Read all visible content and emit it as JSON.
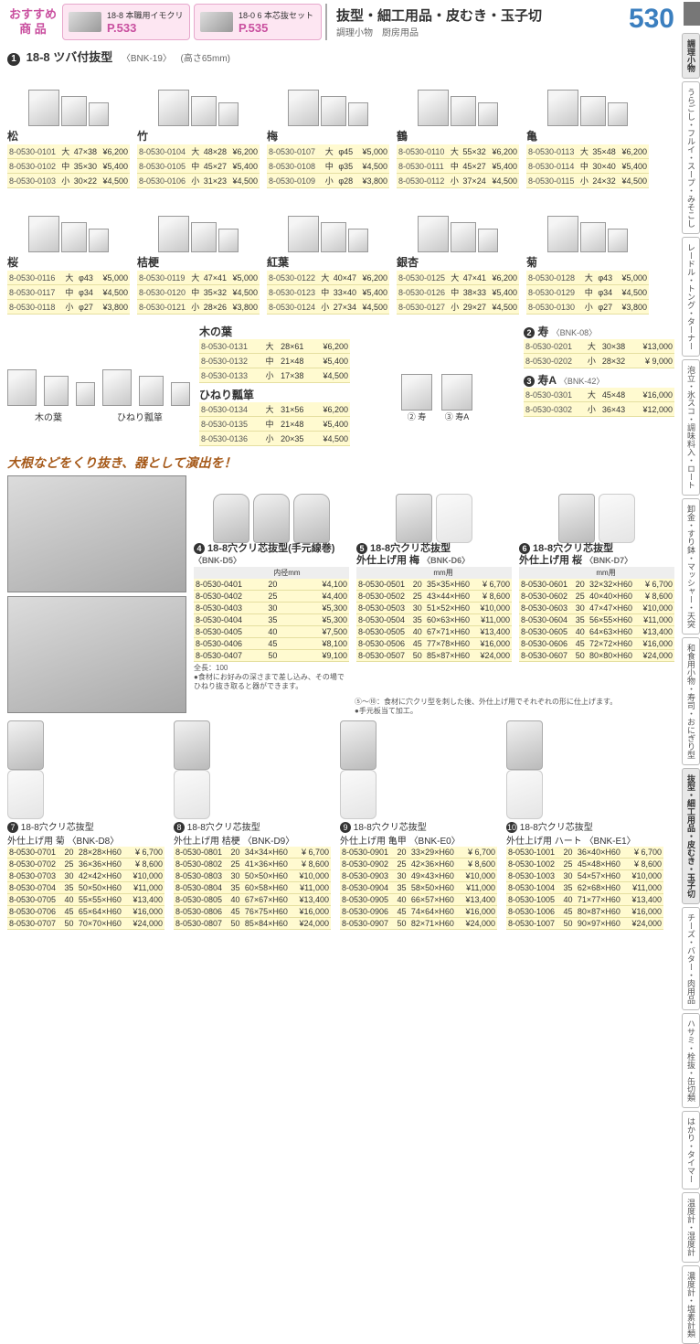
{
  "header": {
    "osusume": "おすすめ\n商 品",
    "promo1": {
      "label": "18-8 本職用イモクリ",
      "page": "P.533"
    },
    "promo2": {
      "label": "18-0 6 本芯抜セット",
      "page": "P.535"
    },
    "cat_main": "抜型・細工用品・皮むき・玉子切",
    "cat_sub": "調理小物　厨房用品",
    "pagenum": "530"
  },
  "side": [
    "調理小物",
    "うらごし・フルイ・スープ・みそこし",
    "レードル・トング・ターナー",
    "泡立・氷スコ・調味料入・ロート",
    "卸金・すり鉢・マッシャー・天突",
    "和食用小物・寿司・おにぎり型",
    "抜型・細工用品・皮むき・玉子切",
    "チーズ・バター・肉用品",
    "ハサミ・栓抜・缶切類",
    "はかり・タイマー",
    "温度計・湿度計",
    "濃度計・塩素計類"
  ],
  "title1": {
    "num": "1",
    "label": "18-8 ツバ付抜型",
    "code": "〈BNK-19〉",
    "note": "(高さ65mm)"
  },
  "row1": [
    {
      "name": "松",
      "rows": [
        [
          "8-0530-0101",
          "大",
          "47×38",
          "¥6,200"
        ],
        [
          "8-0530-0102",
          "中",
          "35×30",
          "¥5,400"
        ],
        [
          "8-0530-0103",
          "小",
          "30×22",
          "¥4,500"
        ]
      ]
    },
    {
      "name": "竹",
      "rows": [
        [
          "8-0530-0104",
          "大",
          "48×28",
          "¥6,200"
        ],
        [
          "8-0530-0105",
          "中",
          "45×27",
          "¥5,400"
        ],
        [
          "8-0530-0106",
          "小",
          "31×23",
          "¥4,500"
        ]
      ]
    },
    {
      "name": "梅",
      "rows": [
        [
          "8-0530-0107",
          "大",
          "φ45",
          "¥5,000"
        ],
        [
          "8-0530-0108",
          "中",
          "φ35",
          "¥4,500"
        ],
        [
          "8-0530-0109",
          "小",
          "φ28",
          "¥3,800"
        ]
      ]
    },
    {
      "name": "鶴",
      "rows": [
        [
          "8-0530-0110",
          "大",
          "55×32",
          "¥6,200"
        ],
        [
          "8-0530-0111",
          "中",
          "45×27",
          "¥5,400"
        ],
        [
          "8-0530-0112",
          "小",
          "37×24",
          "¥4,500"
        ]
      ]
    },
    {
      "name": "亀",
      "rows": [
        [
          "8-0530-0113",
          "大",
          "35×48",
          "¥6,200"
        ],
        [
          "8-0530-0114",
          "中",
          "30×40",
          "¥5,400"
        ],
        [
          "8-0530-0115",
          "小",
          "24×32",
          "¥4,500"
        ]
      ]
    }
  ],
  "row2": [
    {
      "name": "桜",
      "rows": [
        [
          "8-0530-0116",
          "大",
          "φ43",
          "¥5,000"
        ],
        [
          "8-0530-0117",
          "中",
          "φ34",
          "¥4,500"
        ],
        [
          "8-0530-0118",
          "小",
          "φ27",
          "¥3,800"
        ]
      ]
    },
    {
      "name": "桔梗",
      "rows": [
        [
          "8-0530-0119",
          "大",
          "47×41",
          "¥5,000"
        ],
        [
          "8-0530-0120",
          "中",
          "35×32",
          "¥4,500"
        ],
        [
          "8-0530-0121",
          "小",
          "28×26",
          "¥3,800"
        ]
      ]
    },
    {
      "name": "紅葉",
      "rows": [
        [
          "8-0530-0122",
          "大",
          "40×47",
          "¥6,200"
        ],
        [
          "8-0530-0123",
          "中",
          "33×40",
          "¥5,400"
        ],
        [
          "8-0530-0124",
          "小",
          "27×34",
          "¥4,500"
        ]
      ]
    },
    {
      "name": "銀杏",
      "rows": [
        [
          "8-0530-0125",
          "大",
          "47×41",
          "¥6,200"
        ],
        [
          "8-0530-0126",
          "中",
          "38×33",
          "¥5,400"
        ],
        [
          "8-0530-0127",
          "小",
          "29×27",
          "¥4,500"
        ]
      ]
    },
    {
      "name": "菊",
      "rows": [
        [
          "8-0530-0128",
          "大",
          "φ43",
          "¥5,000"
        ],
        [
          "8-0530-0129",
          "中",
          "φ34",
          "¥4,500"
        ],
        [
          "8-0530-0130",
          "小",
          "φ27",
          "¥3,800"
        ]
      ]
    }
  ],
  "leafL": {
    "img_labels": [
      "木の葉",
      "ひねり瓢箪"
    ],
    "konoha": {
      "name": "木の葉",
      "rows": [
        [
          "8-0530-0131",
          "大",
          "28×61",
          "¥6,200"
        ],
        [
          "8-0530-0132",
          "中",
          "21×48",
          "¥5,400"
        ],
        [
          "8-0530-0133",
          "小",
          "17×38",
          "¥4,500"
        ]
      ]
    },
    "hineri": {
      "name": "ひねり瓢箪",
      "rows": [
        [
          "8-0530-0134",
          "大",
          "31×56",
          "¥6,200"
        ],
        [
          "8-0530-0135",
          "中",
          "21×48",
          "¥5,400"
        ],
        [
          "8-0530-0136",
          "小",
          "20×35",
          "¥4,500"
        ]
      ]
    }
  },
  "kotobuki": [
    {
      "num": "2",
      "name": "寿",
      "code": "〈BNK-08〉",
      "rows": [
        [
          "8-0530-0201",
          "大",
          "30×38",
          "¥13,000"
        ],
        [
          "8-0530-0202",
          "小",
          "28×32",
          "¥  9,000"
        ]
      ]
    },
    {
      "num": "3",
      "name": "寿A",
      "code": "〈BNK-42〉",
      "rows": [
        [
          "8-0530-0301",
          "大",
          "45×48",
          "¥16,000"
        ],
        [
          "8-0530-0302",
          "小",
          "36×43",
          "¥12,000"
        ]
      ]
    }
  ],
  "callout": "大根などをくり抜き、器として演出を！",
  "tube": {
    "num": "4",
    "name": "18-8穴クリ芯抜型(手元線巻)",
    "code": "〈BNK-D5〉",
    "hdr": "内径mm",
    "rows": [
      [
        "8-0530-0401",
        "20",
        "¥4,100"
      ],
      [
        "8-0530-0402",
        "25",
        "¥4,400"
      ],
      [
        "8-0530-0403",
        "30",
        "¥5,300"
      ],
      [
        "8-0530-0404",
        "35",
        "¥5,300"
      ],
      [
        "8-0530-0405",
        "40",
        "¥7,500"
      ],
      [
        "8-0530-0406",
        "45",
        "¥8,100"
      ],
      [
        "8-0530-0407",
        "50",
        "¥9,100"
      ]
    ],
    "note1": "全長：100",
    "note2": "●食材にお好みの深さまで差し込み、その場でひねり抜き取ると器ができます。"
  },
  "outer": [
    {
      "num": "5",
      "name": "18-8穴クリ芯抜型\n外仕上げ用 梅",
      "code": "〈BNK-D6〉",
      "hdr": "mm用",
      "rows": [
        [
          "8-0530-0501",
          "20",
          "35×35×H60",
          "¥  6,700"
        ],
        [
          "8-0530-0502",
          "25",
          "43×44×H60",
          "¥  8,600"
        ],
        [
          "8-0530-0503",
          "30",
          "51×52×H60",
          "¥10,000"
        ],
        [
          "8-0530-0504",
          "35",
          "60×63×H60",
          "¥11,000"
        ],
        [
          "8-0530-0505",
          "40",
          "67×71×H60",
          "¥13,400"
        ],
        [
          "8-0530-0506",
          "45",
          "77×78×H60",
          "¥16,000"
        ],
        [
          "8-0530-0507",
          "50",
          "85×87×H60",
          "¥24,000"
        ]
      ]
    },
    {
      "num": "6",
      "name": "18-8穴クリ芯抜型\n外仕上げ用 桜",
      "code": "〈BNK-D7〉",
      "hdr": "mm用",
      "rows": [
        [
          "8-0530-0601",
          "20",
          "32×32×H60",
          "¥  6,700"
        ],
        [
          "8-0530-0602",
          "25",
          "40×40×H60",
          "¥  8,600"
        ],
        [
          "8-0530-0603",
          "30",
          "47×47×H60",
          "¥10,000"
        ],
        [
          "8-0530-0604",
          "35",
          "56×55×H60",
          "¥11,000"
        ],
        [
          "8-0530-0605",
          "40",
          "64×63×H60",
          "¥13,400"
        ],
        [
          "8-0530-0606",
          "45",
          "72×72×H60",
          "¥16,000"
        ],
        [
          "8-0530-0607",
          "50",
          "80×80×H60",
          "¥24,000"
        ]
      ]
    }
  ],
  "outer_note": "⑤～⑩：食材に穴クリ型を刺した後、外仕上げ用でそれぞれの形に仕上げます。\n●手元板当て加工。",
  "bottom": [
    {
      "num": "7",
      "name": "18-8穴クリ芯抜型\n外仕上げ用 菊",
      "code": "〈BNK-D8〉",
      "rows": [
        [
          "8-0530-0701",
          "20",
          "28×28×H60",
          "¥  6,700"
        ],
        [
          "8-0530-0702",
          "25",
          "36×36×H60",
          "¥  8,600"
        ],
        [
          "8-0530-0703",
          "30",
          "42×42×H60",
          "¥10,000"
        ],
        [
          "8-0530-0704",
          "35",
          "50×50×H60",
          "¥11,000"
        ],
        [
          "8-0530-0705",
          "40",
          "55×55×H60",
          "¥13,400"
        ],
        [
          "8-0530-0706",
          "45",
          "65×64×H60",
          "¥16,000"
        ],
        [
          "8-0530-0707",
          "50",
          "70×70×H60",
          "¥24,000"
        ]
      ]
    },
    {
      "num": "8",
      "name": "18-8穴クリ芯抜型\n外仕上げ用 桔梗",
      "code": "〈BNK-D9〉",
      "rows": [
        [
          "8-0530-0801",
          "20",
          "34×34×H60",
          "¥  6,700"
        ],
        [
          "8-0530-0802",
          "25",
          "41×36×H60",
          "¥  8,600"
        ],
        [
          "8-0530-0803",
          "30",
          "50×50×H60",
          "¥10,000"
        ],
        [
          "8-0530-0804",
          "35",
          "60×58×H60",
          "¥11,000"
        ],
        [
          "8-0530-0805",
          "40",
          "67×67×H60",
          "¥13,400"
        ],
        [
          "8-0530-0806",
          "45",
          "76×75×H60",
          "¥16,000"
        ],
        [
          "8-0530-0807",
          "50",
          "85×84×H60",
          "¥24,000"
        ]
      ]
    },
    {
      "num": "9",
      "name": "18-8穴クリ芯抜型\n外仕上げ用 亀甲",
      "code": "〈BNK-E0〉",
      "rows": [
        [
          "8-0530-0901",
          "20",
          "33×29×H60",
          "¥  6,700"
        ],
        [
          "8-0530-0902",
          "25",
          "42×36×H60",
          "¥  8,600"
        ],
        [
          "8-0530-0903",
          "30",
          "49×43×H60",
          "¥10,000"
        ],
        [
          "8-0530-0904",
          "35",
          "58×50×H60",
          "¥11,000"
        ],
        [
          "8-0530-0905",
          "40",
          "66×57×H60",
          "¥13,400"
        ],
        [
          "8-0530-0906",
          "45",
          "74×64×H60",
          "¥16,000"
        ],
        [
          "8-0530-0907",
          "50",
          "82×71×H60",
          "¥24,000"
        ]
      ]
    },
    {
      "num": "10",
      "name": "18-8穴クリ芯抜型\n外仕上げ用 ハート",
      "code": "〈BNK-E1〉",
      "rows": [
        [
          "8-0530-1001",
          "20",
          "36×40×H60",
          "¥  6,700"
        ],
        [
          "8-0530-1002",
          "25",
          "45×48×H60",
          "¥  8,600"
        ],
        [
          "8-0530-1003",
          "30",
          "54×57×H60",
          "¥10,000"
        ],
        [
          "8-0530-1004",
          "35",
          "62×68×H60",
          "¥11,000"
        ],
        [
          "8-0530-1005",
          "40",
          "71×77×H60",
          "¥13,400"
        ],
        [
          "8-0530-1006",
          "45",
          "80×87×H60",
          "¥16,000"
        ],
        [
          "8-0530-1007",
          "50",
          "90×97×H60",
          "¥24,000"
        ]
      ]
    }
  ]
}
